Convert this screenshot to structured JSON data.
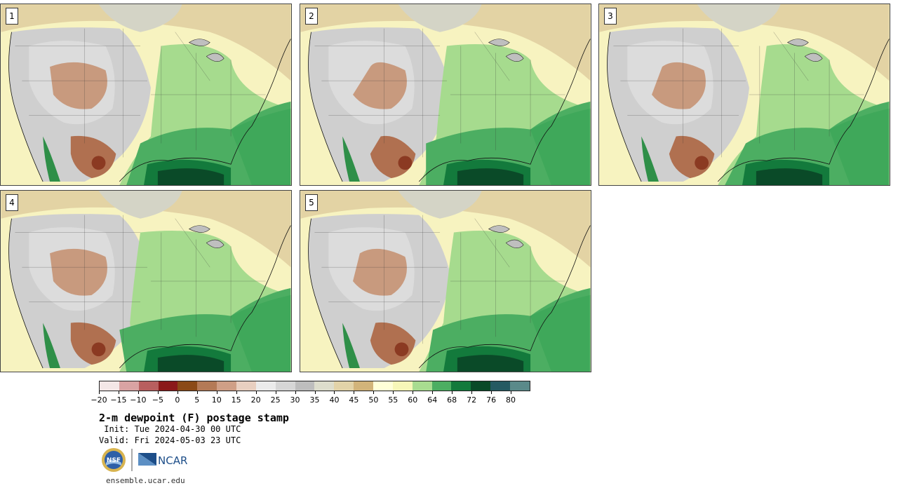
{
  "panels": [
    {
      "label": "1"
    },
    {
      "label": "2"
    },
    {
      "label": "3"
    },
    {
      "label": "4"
    },
    {
      "label": "5"
    }
  ],
  "colorbar": {
    "colors": [
      "#f4e7e7",
      "#d9a3a3",
      "#b85f5f",
      "#8b1a1a",
      "#8b4a17",
      "#b47a56",
      "#cf9f86",
      "#e8cfc0",
      "#ebebeb",
      "#d6d6d6",
      "#bdbdbd",
      "#ddddcc",
      "#e2d3a8",
      "#d2b47a",
      "#ffffd8",
      "#f7f7b8",
      "#a8dc90",
      "#4cae62",
      "#137a3c",
      "#0a4a28",
      "#255a62",
      "#5a8a8a"
    ],
    "tick_labels": [
      "−20",
      "−15",
      "−10",
      "−5",
      "0",
      "5",
      "10",
      "15",
      "20",
      "25",
      "30",
      "35",
      "40",
      "45",
      "50",
      "55",
      "60",
      "64",
      "68",
      "72",
      "76",
      "80"
    ]
  },
  "title": "2-m dewpoint (F) postage stamp",
  "init_line": " Init: Tue 2024-04-30 00 UTC",
  "valid_line": "Valid: Fri 2024-05-03 23 UTC",
  "logos": {
    "nsf": "NSF",
    "ncar": "NCAR"
  },
  "url": "ensemble.ucar.edu"
}
